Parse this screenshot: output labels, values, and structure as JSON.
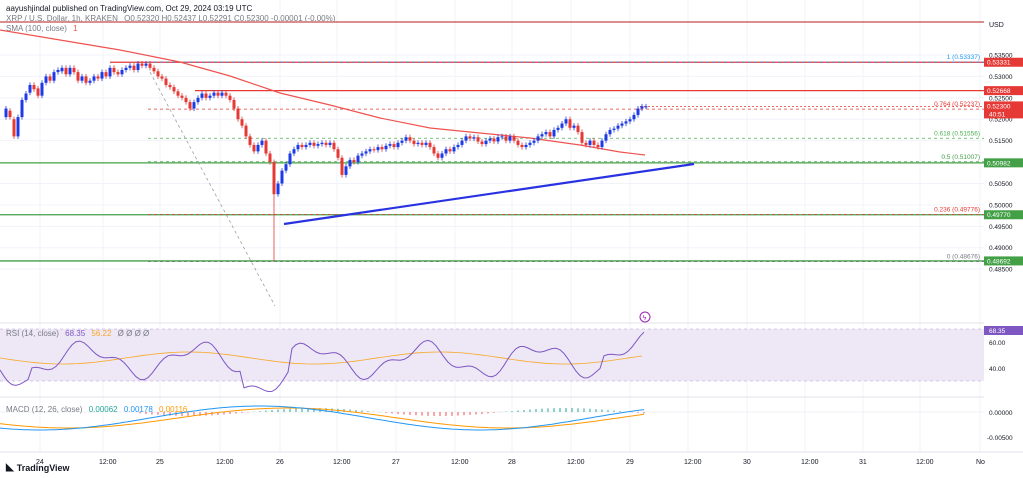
{
  "header": {
    "published": "aayushjindal published on TradingView.com, Oct 29, 2024 03:19 UTC",
    "symbol": "XRP / U.S. Dollar, 1h, KRAKEN",
    "ohlc": "O0.52320 H0.52437 L0.52291 C0.52300 -0.00001 (-0.00%)",
    "sma_label": "SMA (100, close)",
    "sma_value": "1"
  },
  "branding": {
    "logo": "TradingView"
  },
  "price_axis": {
    "currency": "USD",
    "ticks": [
      "0.53500",
      "0.53000",
      "0.52500",
      "0.52000",
      "0.51500",
      "0.50500",
      "0.50000",
      "0.49500",
      "0.49000",
      "0.48500"
    ]
  },
  "time_axis": {
    "ticks": [
      "24",
      "12:00",
      "25",
      "12:00",
      "26",
      "12:00",
      "27",
      "12:00",
      "28",
      "12:00",
      "29",
      "12:00",
      "30",
      "12:00",
      "31",
      "12:00",
      "No"
    ]
  },
  "horizontal_levels": [
    {
      "label": "0.53331",
      "color": "#e53935"
    },
    {
      "label": "0.52668",
      "color": "#e53935"
    },
    {
      "label": "0.50982",
      "color": "#43a047"
    },
    {
      "label": "0.49770",
      "color": "#43a047"
    },
    {
      "label": "0.48692",
      "color": "#43a047"
    }
  ],
  "last_price": {
    "value": "0.52300",
    "countdown": "40:51",
    "color": "#e53935"
  },
  "fibonacci": [
    {
      "label": "1 (0.53337)",
      "color": "#2196f3"
    },
    {
      "label": "0.764 (0.52237)",
      "color": "#e53935"
    },
    {
      "label": "0.618 (0.51556)",
      "color": "#4caf50"
    },
    {
      "label": "0.5 (0.51007)",
      "color": "#43a047"
    },
    {
      "label": "0.236 (0.49776)",
      "color": "#e53935"
    },
    {
      "label": "0 (0.48676)",
      "color": "#787b86"
    }
  ],
  "rsi": {
    "label": "RSI (14, close)",
    "value": "68.35",
    "ma_value": "56.22",
    "extra": "Ø Ø Ø Ø",
    "ticks": [
      "60.00",
      "40.00"
    ]
  },
  "macd": {
    "label": "MACD (12, 26, close)",
    "hist": "0.00062",
    "macd": "0.00178",
    "signal": "0.00116",
    "ticks": [
      "0.00000",
      "-0.00500"
    ]
  },
  "colors": {
    "up": "#1e3ae6",
    "down": "#e53935",
    "sma": "#ef5350",
    "trendline": "#2932e1",
    "rsi_line": "#7e57c2",
    "rsi_bg": "#ede7f6"
  }
}
